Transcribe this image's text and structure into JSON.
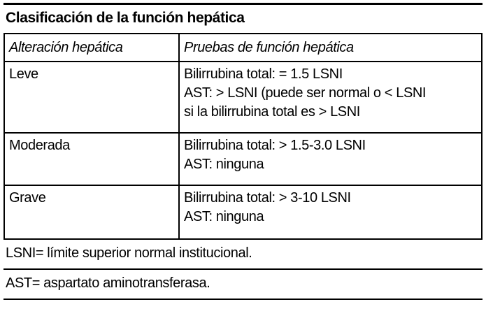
{
  "title": "Clasificación de la función hepática",
  "table": {
    "headers": {
      "alteracion": "Alteración hepática",
      "pruebas": "Pruebas de función hepática"
    },
    "rows": [
      {
        "alteracion": "Leve",
        "pruebas": [
          "Bilirrubina total: = 1.5 LSNI",
          "AST: > LSNI (puede ser normal o < LSNI",
          "si la bilirrubina total es > LSNI"
        ]
      },
      {
        "alteracion": "Moderada",
        "pruebas": [
          "Bilirrubina total: > 1.5-3.0 LSNI",
          "AST: ninguna"
        ]
      },
      {
        "alteracion": "Grave",
        "pruebas": [
          "Bilirrubina total: > 3-10 LSNI",
          "AST: ninguna"
        ]
      }
    ]
  },
  "footnotes": {
    "lsni": "LSNI= límite superior normal institucional.",
    "ast": "AST= aspartato aminotransferasa."
  },
  "colors": {
    "text": "#000000",
    "background": "#ffffff",
    "border": "#000000"
  }
}
